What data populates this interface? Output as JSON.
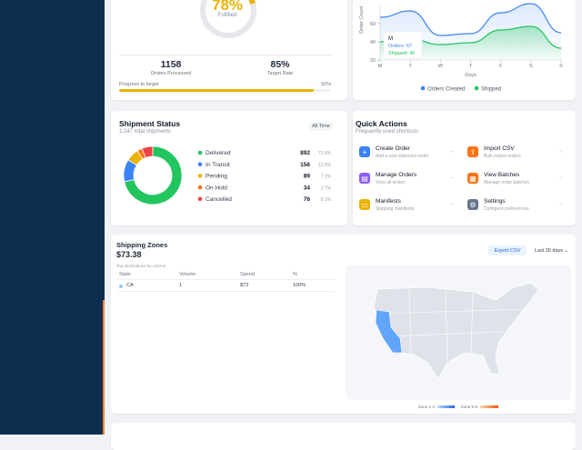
{
  "fulfillment": {
    "percent": "78%",
    "label": "Fulfilled",
    "stats": [
      {
        "value": "1158",
        "label": "Orders Processed"
      },
      {
        "value": "85%",
        "label": "Target Rate"
      }
    ],
    "progress_label": "Progress to target",
    "progress_value": "92%"
  },
  "orders_chart": {
    "type": "line",
    "y_label": "Order Count",
    "x_label": "Days",
    "categories": [
      "M",
      "T",
      "W",
      "T",
      "F",
      "S",
      "S"
    ],
    "series": [
      {
        "name": "Orders Created",
        "color": "#3b82f6",
        "values": [
          67,
          74,
          47,
          49,
          72,
          82,
          50
        ]
      },
      {
        "name": "Shipped",
        "color": "#22c55e",
        "values": [
          40,
          43,
          37,
          39,
          53,
          57,
          33
        ]
      }
    ],
    "ylim": [
      20,
      80
    ],
    "yticks": [
      20,
      40,
      60
    ],
    "tooltip": {
      "title": "M",
      "lines": [
        "Orders: 67",
        "Shipped: 40"
      ]
    }
  },
  "shipment_status": {
    "title": "Shipment Status",
    "subtitle": "1,247 total shipments",
    "filter": "All Time",
    "items": [
      {
        "name": "Delivered",
        "value": 892,
        "percent": "71.5%",
        "color": "#22c55e"
      },
      {
        "name": "In Transit",
        "value": 156,
        "percent": "12.5%",
        "color": "#3b82f6"
      },
      {
        "name": "Pending",
        "value": 89,
        "percent": "7.1%",
        "color": "#eab308"
      },
      {
        "name": "On Hold",
        "value": 34,
        "percent": "2.7%",
        "color": "#f97316"
      },
      {
        "name": "Cancelled",
        "value": 76,
        "percent": "6.1%",
        "color": "#ef4444"
      }
    ]
  },
  "quick_actions": {
    "title": "Quick Actions",
    "subtitle": "Frequently used shortcuts",
    "items": [
      {
        "title": "Create Order",
        "subtitle": "Add a new shipment order",
        "icon": "+"
      },
      {
        "title": "Import CSV",
        "subtitle": "Bulk import orders",
        "icon": "⇪"
      },
      {
        "title": "Manage Orders",
        "subtitle": "View all orders",
        "icon": "▤"
      },
      {
        "title": "View Batches",
        "subtitle": "Manage order batches",
        "icon": "▦"
      },
      {
        "title": "Manifests",
        "subtitle": "Shipping manifests",
        "icon": "▭"
      },
      {
        "title": "Settings",
        "subtitle": "Configure preferences",
        "icon": "⚙"
      }
    ]
  },
  "shipping_zones": {
    "title": "Shipping Zones",
    "total": "$73.38",
    "caption": "Top destinations by volume",
    "export": "Export CSV",
    "range": "Last 30 days",
    "table": {
      "headers": [
        "State",
        "Volume",
        "Spend",
        "%"
      ],
      "rows": [
        [
          "CA",
          "1",
          "$73",
          "100%"
        ]
      ]
    },
    "legend": [
      "Zone 1-4",
      "Zone 5-8"
    ]
  }
}
